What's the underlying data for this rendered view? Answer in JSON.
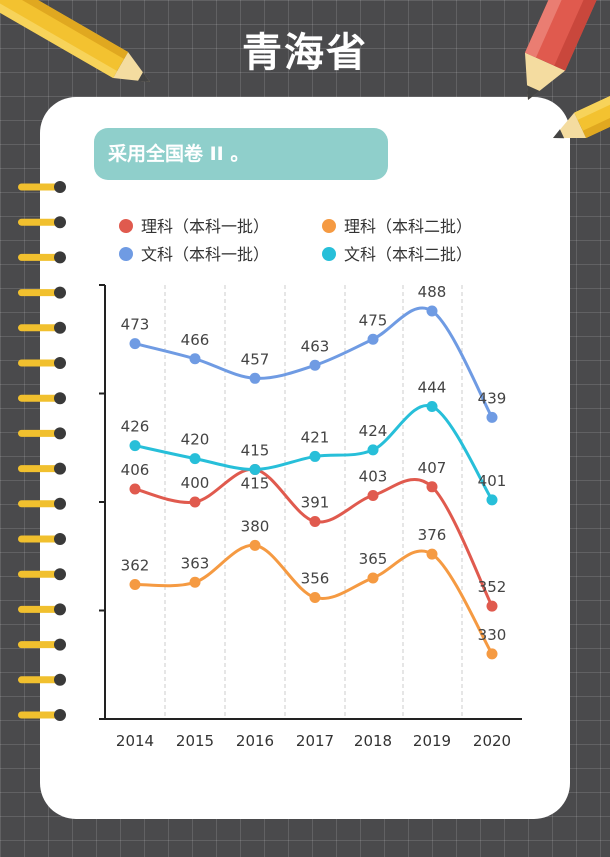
{
  "header": {
    "title": "青海省"
  },
  "note": {
    "text": "采用全国卷 II 。"
  },
  "chart_data": {
    "type": "line",
    "x": [
      "2014",
      "2015",
      "2016",
      "2017",
      "2018",
      "2019",
      "2020"
    ],
    "ylim": [
      300,
      500
    ],
    "series": [
      {
        "name": "理科（本科一批）",
        "color": "#e05a4e",
        "values": [
          406,
          400,
          415,
          391,
          403,
          407,
          352
        ],
        "label_offsets": [
          -14,
          -14,
          14,
          -14,
          -14,
          -14,
          -14
        ]
      },
      {
        "name": "理科（本科二批）",
        "color": "#f59a42",
        "values": [
          362,
          363,
          380,
          356,
          365,
          376,
          330
        ],
        "label_offsets": [
          -14,
          -14,
          -14,
          -14,
          -14,
          -14,
          -14
        ]
      },
      {
        "name": "文科（本科一批）",
        "color": "#6f9be3",
        "values": [
          473,
          466,
          457,
          463,
          475,
          488,
          439
        ],
        "label_offsets": [
          -14,
          -14,
          -14,
          -14,
          -14,
          -14,
          -14
        ]
      },
      {
        "name": "文科（本科二批）",
        "color": "#27bfd9",
        "values": [
          426,
          420,
          415,
          421,
          424,
          444,
          401
        ],
        "label_offsets": [
          -14,
          -14,
          -14,
          -14,
          -14,
          -14,
          -14
        ]
      }
    ],
    "legend_position": "top",
    "grid": "vertical-dashed"
  }
}
